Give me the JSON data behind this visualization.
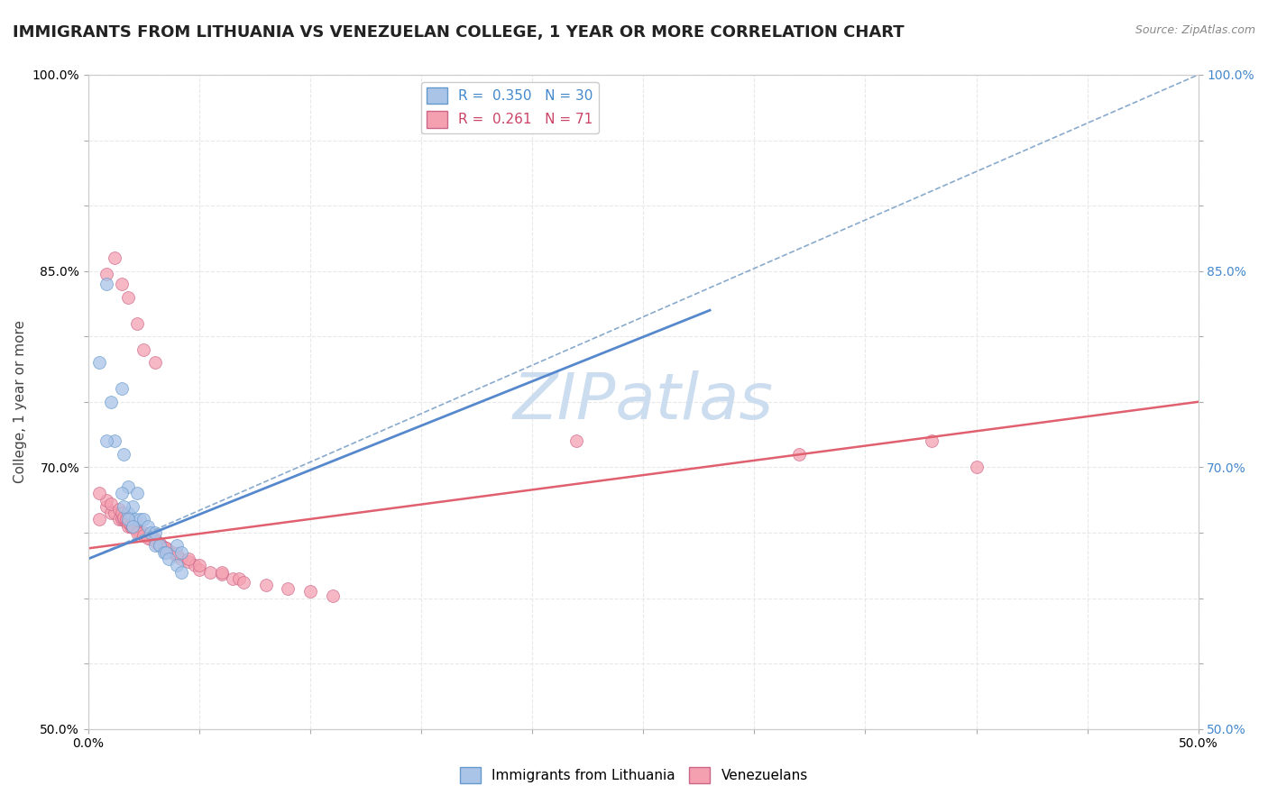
{
  "title": "IMMIGRANTS FROM LITHUANIA VS VENEZUELAN COLLEGE, 1 YEAR OR MORE CORRELATION CHART",
  "source": "Source: ZipAtlas.com",
  "ylabel": "College, 1 year or more",
  "xlim": [
    0.0,
    0.5
  ],
  "ylim": [
    0.5,
    1.0
  ],
  "xticks": [
    0.0,
    0.05,
    0.1,
    0.15,
    0.2,
    0.25,
    0.3,
    0.35,
    0.4,
    0.45,
    0.5
  ],
  "yticks": [
    0.5,
    0.55,
    0.6,
    0.65,
    0.7,
    0.75,
    0.8,
    0.85,
    0.9,
    0.95,
    1.0
  ],
  "ytick_show": {
    "0.50": "50.0%",
    "0.70": "70.0%",
    "0.85": "85.0%",
    "1.00": "100.0%"
  },
  "xtick_show": {
    "0.0": "0.0%",
    "0.50": "50.0%"
  },
  "legend_items": [
    {
      "label": "R =  0.350   N = 30",
      "facecolor": "#aac4e8",
      "edgecolor": "#6699cc",
      "textcolor": "#4488cc"
    },
    {
      "label": "R =  0.261   N = 71",
      "facecolor": "#f4a0b0",
      "edgecolor": "#cc6688",
      "textcolor": "#cc4466"
    }
  ],
  "watermark": "ZIPatlas",
  "watermark_color": "#ccddf0",
  "watermark_fontsize": 52,
  "series": [
    {
      "name": "Immigrants from Lithuania",
      "facecolor": "#aac4e8",
      "edgecolor": "#6699cc",
      "x": [
        0.008,
        0.01,
        0.012,
        0.015,
        0.016,
        0.018,
        0.018,
        0.02,
        0.021,
        0.022,
        0.023,
        0.025,
        0.027,
        0.028,
        0.03,
        0.03,
        0.032,
        0.034,
        0.035,
        0.036,
        0.04,
        0.042,
        0.008,
        0.015,
        0.016,
        0.018,
        0.02,
        0.04,
        0.042,
        0.005
      ],
      "y": [
        0.84,
        0.75,
        0.72,
        0.76,
        0.71,
        0.685,
        0.665,
        0.67,
        0.66,
        0.68,
        0.66,
        0.66,
        0.655,
        0.65,
        0.65,
        0.64,
        0.64,
        0.635,
        0.635,
        0.63,
        0.625,
        0.62,
        0.72,
        0.68,
        0.67,
        0.66,
        0.655,
        0.64,
        0.635,
        0.78
      ],
      "solid_trend_x": [
        0.0,
        0.28
      ],
      "solid_trend_y": [
        0.63,
        0.82
      ],
      "dashed_trend_x": [
        0.0,
        0.5
      ],
      "dashed_trend_y": [
        0.63,
        1.0
      ],
      "solid_color": "#5588cc",
      "dashed_color": "#88aacc"
    },
    {
      "name": "Venezuelans",
      "facecolor": "#f4a0b0",
      "edgecolor": "#cc6688",
      "x": [
        0.005,
        0.008,
        0.01,
        0.012,
        0.014,
        0.015,
        0.016,
        0.017,
        0.018,
        0.019,
        0.02,
        0.021,
        0.022,
        0.023,
        0.025,
        0.026,
        0.027,
        0.028,
        0.03,
        0.031,
        0.032,
        0.033,
        0.034,
        0.035,
        0.036,
        0.038,
        0.04,
        0.042,
        0.045,
        0.048,
        0.05,
        0.055,
        0.06,
        0.065,
        0.068,
        0.07,
        0.08,
        0.09,
        0.1,
        0.11,
        0.008,
        0.01,
        0.014,
        0.015,
        0.016,
        0.017,
        0.018,
        0.019,
        0.02,
        0.022,
        0.025,
        0.027,
        0.03,
        0.032,
        0.035,
        0.04,
        0.045,
        0.05,
        0.06,
        0.32,
        0.005,
        0.008,
        0.012,
        0.015,
        0.018,
        0.022,
        0.025,
        0.03,
        0.22,
        0.38,
        0.4
      ],
      "y": [
        0.66,
        0.67,
        0.665,
        0.665,
        0.66,
        0.66,
        0.66,
        0.658,
        0.655,
        0.655,
        0.655,
        0.655,
        0.652,
        0.65,
        0.65,
        0.648,
        0.648,
        0.645,
        0.645,
        0.642,
        0.64,
        0.64,
        0.638,
        0.638,
        0.636,
        0.635,
        0.632,
        0.63,
        0.628,
        0.625,
        0.622,
        0.62,
        0.618,
        0.615,
        0.615,
        0.612,
        0.61,
        0.607,
        0.605,
        0.602,
        0.675,
        0.672,
        0.668,
        0.665,
        0.662,
        0.66,
        0.658,
        0.656,
        0.654,
        0.65,
        0.648,
        0.646,
        0.644,
        0.642,
        0.638,
        0.634,
        0.63,
        0.625,
        0.62,
        0.71,
        0.68,
        0.848,
        0.86,
        0.84,
        0.83,
        0.81,
        0.79,
        0.78,
        0.72,
        0.72,
        0.7
      ],
      "trend_x": [
        0.0,
        0.5
      ],
      "trend_y": [
        0.638,
        0.75
      ],
      "trend_color": "#e06070"
    }
  ],
  "background_color": "#ffffff",
  "grid_color": "#e8e8e8",
  "title_fontsize": 13,
  "axis_label_fontsize": 11,
  "tick_fontsize": 10,
  "legend_fontsize": 11,
  "dot_size": 100
}
